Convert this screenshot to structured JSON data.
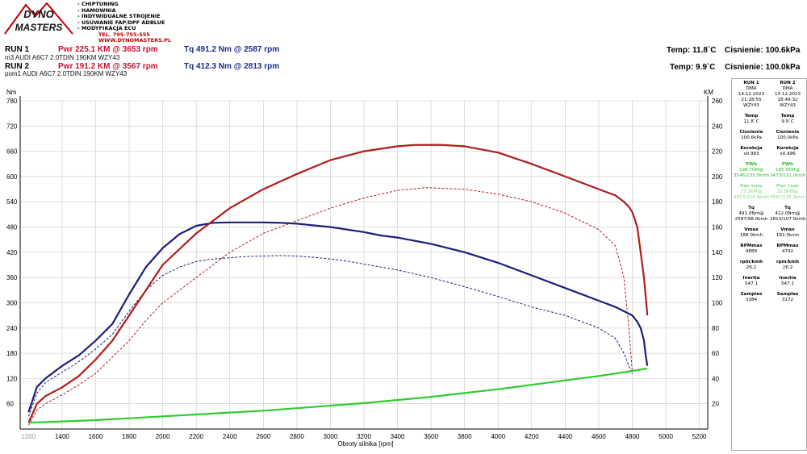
{
  "logo": {
    "line1": "DYNO",
    "line2": "MASTERS"
  },
  "services": [
    "- CHIPTUNING",
    "- HAMOWNIA",
    "- INDYWIDUALNE STROJENIE",
    "- USUWANIE FAP/DPF ADBLUE",
    "- MODYFIKACJA ECU"
  ],
  "contact": {
    "phone": "TEL. 795-755-555",
    "web": "WWW.DYNOMASTERS.PL"
  },
  "runs": [
    {
      "label": "RUN 1",
      "pwr": "Pwr  225.1 KM @ 3653 rpm",
      "tq": "Tq 491.2 Nm @ 2587 rpm",
      "vehicle": "m3 AUDI A6C7 2.0TDIN 190KM WZY43",
      "temp": "Temp: 11.8`C",
      "pressure": "Cisnienie: 100.6kPa"
    },
    {
      "label": "RUN 2",
      "pwr": "Pwr  191.2 KM @ 3567 rpm",
      "tq": "Tq 412.3 Nm @ 2813 rpm",
      "vehicle": "pom1 AUDI A6C7 2.0TDIN 190KM WZY43",
      "temp": "Temp: 9.9`C",
      "pressure": "Cisnienie: 100.0kPa"
    }
  ],
  "side_panel": [
    {
      "run": "RUN 1",
      "dma": "DMA",
      "date": "14.12.2023",
      "time": "21:28:55",
      "plate": "WZY43",
      "temp_label": "Temp",
      "temp": "11.8`C",
      "press_label": "Cisnienie",
      "press": "100.6kPa",
      "corr_label": "Korekcja",
      "corr": "x0.993",
      "pwh_label": "PWh",
      "pwh": "198.7KM@",
      "pwh2": "3546/135.0kmh",
      "pwrloss_label": "Pwr Loss",
      "pwrloss": "27.2KM@",
      "pwrloss2": "3653/154.0kmh",
      "tq_label": "Tq",
      "tq": "491.0Nm@",
      "tq2": "2587/98.0kmh",
      "vmax_label": "Vmax",
      "vmax": "188.0kmh",
      "rpmmax_label": "RPMmax",
      "rpmmax": "4889",
      "rpmkmh_label": "rpm/kmh",
      "rpmkmh": "26.2",
      "inertia_label": "Inertia",
      "inertia": "547.1",
      "samples_label": "Samples",
      "samples": "3384"
    },
    {
      "run": "RUN 2",
      "dma": "DMA",
      "date": "14.12.2023",
      "time": "18:49:32",
      "plate": "WZY43",
      "temp_label": "Temp",
      "temp": "9.9`C",
      "press_label": "Cisnienie",
      "press": "100.0kPa",
      "corr_label": "Korekcja",
      "corr": "x0.996",
      "pwh_label": "PWh",
      "pwh": "165.5KM@",
      "pwh2": "3473/132.0kmh",
      "pwrloss_label": "Pwr Loss",
      "pwrloss": "25.8KM@",
      "pwrloss2": "3567/135.0kmh",
      "tq_label": "Tq",
      "tq": "412.0Nm@",
      "tq2": "2813/107.0kmh",
      "vmax_label": "Vmax",
      "vmax": "182.0kmh",
      "rpmmax_label": "RPMmax",
      "rpmmax": "4792",
      "rpmkmh_label": "rpm/kmh",
      "rpmkmh": "26.2",
      "inertia_label": "Inertia",
      "inertia": "547.1",
      "samples_label": "Samples",
      "samples": "3172"
    }
  ],
  "chart_data": {
    "type": "line",
    "xlabel": "Obroty silnika [rpm]",
    "left_unit": "Nm",
    "right_unit": "KM",
    "x_ticks": [
      1400,
      1600,
      1800,
      2000,
      2200,
      2400,
      2600,
      2800,
      3000,
      3200,
      3400,
      3600,
      3800,
      4000,
      4200,
      4400,
      4600,
      4800,
      5000,
      5200
    ],
    "x_first_label": "1200",
    "xlim": [
      1150,
      5250
    ],
    "ylim_left": [
      0,
      780
    ],
    "ylim_right": [
      0,
      260
    ],
    "y_ticks_left": [
      60,
      120,
      180,
      240,
      300,
      360,
      420,
      480,
      540,
      600,
      660,
      720,
      780
    ],
    "y_ticks_right": [
      20,
      40,
      60,
      80,
      100,
      120,
      140,
      160,
      180,
      200,
      220,
      240,
      260
    ],
    "grid": true,
    "colors": {
      "power": "#b01c1c",
      "torque": "#1a1f7a",
      "loss": "#2ecc2e",
      "grid": "#c8c8c8"
    },
    "series": [
      {
        "axis": "left",
        "style": "solid",
        "color": "#1a1f7a",
        "x": [
          1200,
          1250,
          1300,
          1400,
          1500,
          1600,
          1700,
          1800,
          1900,
          2000,
          2100,
          2200,
          2300,
          2400,
          2500,
          2600,
          2700,
          2800,
          2900,
          3000,
          3100,
          3200,
          3300,
          3400,
          3600,
          3800,
          4000,
          4200,
          4400,
          4600,
          4700,
          4750,
          4800,
          4830,
          4850,
          4870,
          4880,
          4890
        ],
        "y": [
          40,
          100,
          120,
          150,
          175,
          210,
          250,
          320,
          385,
          430,
          463,
          483,
          490,
          491,
          491,
          491,
          490,
          488,
          484,
          480,
          474,
          468,
          460,
          455,
          440,
          420,
          395,
          365,
          335,
          305,
          290,
          280,
          270,
          255,
          240,
          210,
          175,
          150
        ]
      },
      {
        "axis": "left",
        "style": "dashed",
        "color": "#1a1f7a",
        "x": [
          1200,
          1250,
          1300,
          1400,
          1500,
          1600,
          1700,
          1800,
          1900,
          2000,
          2100,
          2200,
          2300,
          2400,
          2500,
          2600,
          2700,
          2800,
          2900,
          3000,
          3100,
          3200,
          3300,
          3400,
          3600,
          3800,
          4000,
          4200,
          4400,
          4600,
          4700,
          4750,
          4780,
          4800
        ],
        "y": [
          30,
          85,
          110,
          135,
          160,
          190,
          225,
          280,
          330,
          365,
          385,
          398,
          404,
          407,
          410,
          411,
          412,
          411,
          408,
          404,
          399,
          392,
          385,
          378,
          360,
          338,
          315,
          290,
          270,
          240,
          215,
          180,
          150,
          130
        ]
      },
      {
        "axis": "right",
        "style": "solid",
        "color": "#b01c1c",
        "x": [
          1200,
          1250,
          1300,
          1400,
          1500,
          1600,
          1700,
          1800,
          1900,
          2000,
          2200,
          2400,
          2600,
          2800,
          3000,
          3200,
          3400,
          3500,
          3653,
          3800,
          4000,
          4200,
          4400,
          4600,
          4700,
          4750,
          4780,
          4800,
          4830,
          4850,
          4870,
          4890
        ],
        "y": [
          5,
          20,
          26,
          33,
          42,
          55,
          70,
          90,
          110,
          130,
          155,
          175,
          190,
          202,
          213,
          220,
          224,
          225,
          225.1,
          224,
          219,
          210,
          200,
          190,
          185,
          180,
          176,
          172,
          160,
          140,
          120,
          90
        ]
      },
      {
        "axis": "right",
        "style": "dashed",
        "color": "#b01c1c",
        "x": [
          1200,
          1250,
          1300,
          1400,
          1500,
          1600,
          1700,
          1800,
          1900,
          2000,
          2200,
          2400,
          2600,
          2800,
          3000,
          3200,
          3400,
          3567,
          3800,
          4000,
          4200,
          4400,
          4600,
          4700,
          4750,
          4780,
          4800
        ],
        "y": [
          3,
          15,
          20,
          27,
          35,
          44,
          57,
          70,
          86,
          100,
          120,
          140,
          155,
          165,
          175,
          183,
          189,
          191.2,
          190,
          186,
          180,
          171,
          158,
          145,
          120,
          80,
          45
        ]
      },
      {
        "axis": "right",
        "style": "solid",
        "color": "#2ecc2e",
        "x": [
          1200,
          1400,
          1600,
          1800,
          2000,
          2200,
          2400,
          2600,
          2800,
          3000,
          3200,
          3400,
          3600,
          3800,
          4000,
          4200,
          4400,
          4600,
          4800,
          4890
        ],
        "y": [
          5,
          6,
          7,
          8.5,
          10,
          11.5,
          13,
          14.5,
          16.5,
          18.5,
          20.5,
          23,
          25.5,
          28.5,
          31.5,
          35,
          38.5,
          42,
          46,
          48
        ]
      }
    ]
  }
}
